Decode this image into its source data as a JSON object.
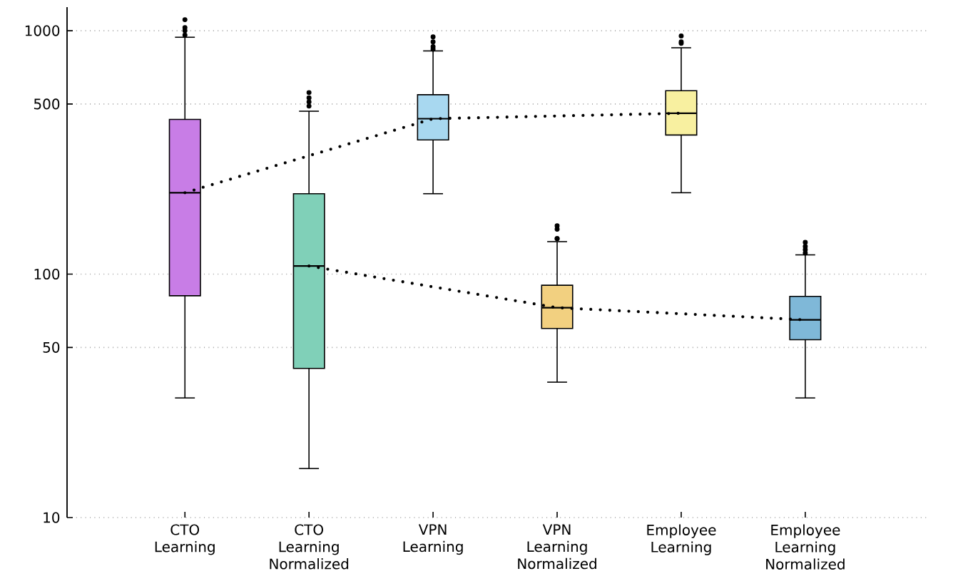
{
  "chart_data": {
    "type": "box",
    "categories": [
      "CTO Learning",
      "CTO Learning Normalized",
      "VPN Learning",
      "VPN Learning Normalized",
      "Employee Learning",
      "Employee Learning Normalized"
    ],
    "boxes": [
      {
        "low": 31,
        "q1": 81.5,
        "median": 216,
        "q3": 432,
        "high": 940,
        "outliers": [
          960,
          1000,
          1030,
          1110
        ]
      },
      {
        "low": 15.9,
        "q1": 41,
        "median": 108,
        "q3": 214,
        "high": 467,
        "outliers": [
          490,
          510,
          530,
          557
        ]
      },
      {
        "low": 214,
        "q1": 356,
        "median": 435,
        "q3": 546,
        "high": 826,
        "outliers": [
          840,
          860,
          900,
          944
        ]
      },
      {
        "low": 36,
        "q1": 59.8,
        "median": 72.8,
        "q3": 90,
        "high": 136,
        "outliers": [
          140,
          140,
          153,
          158
        ]
      },
      {
        "low": 216,
        "q1": 373,
        "median": 458,
        "q3": 567,
        "high": 851,
        "outliers": [
          887,
          900,
          952
        ]
      },
      {
        "low": 31,
        "q1": 53.8,
        "median": 64.9,
        "q3": 81,
        "high": 120,
        "outliers": [
          122,
          126,
          130,
          135
        ]
      }
    ],
    "colors": [
      "#c87de6",
      "#80d0b8",
      "#a8d8f0",
      "#f2d080",
      "#f8f0a0",
      "#7fb8d8"
    ],
    "series": [
      {
        "type": "line",
        "x": [
          "CTO Learning",
          "VPN Learning",
          "Employee Learning"
        ],
        "values": [
          216,
          435,
          458
        ],
        "color": "#000000",
        "line_style": "dotted",
        "marker": "none"
      },
      {
        "type": "line",
        "x": [
          "CTO Learning Normalized",
          "VPN Learning Normalized",
          "Employee Learning Normalized"
        ],
        "values": [
          108,
          72.8,
          64.9
        ],
        "color": "#000000",
        "line_style": "dotted",
        "marker": "none"
      }
    ],
    "ylim": [
      10,
      1250
    ],
    "yticks": [
      10,
      50,
      100,
      500,
      1000
    ],
    "log": true,
    "grid": "y",
    "legend": false
  }
}
